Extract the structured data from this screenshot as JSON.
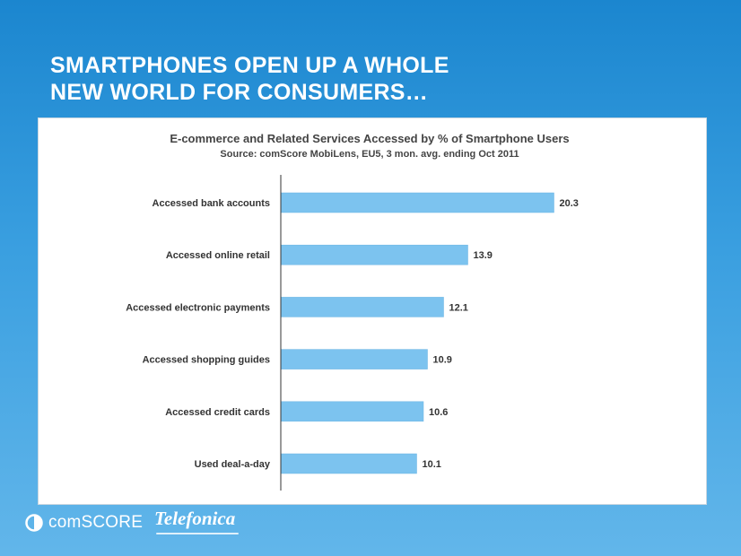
{
  "slide": {
    "title_line1": "SMARTPHONES OPEN UP A WHOLE",
    "title_line2": "NEW WORLD FOR CONSUMERS…"
  },
  "chart_data": {
    "type": "bar",
    "orientation": "horizontal",
    "title": "E-commerce and Related Services Accessed by % of Smartphone Users",
    "subtitle": "Source: comScore MobiLens, EU5, 3 mon. avg. ending Oct 2011",
    "categories": [
      "Accessed bank accounts",
      "Accessed online retail",
      "Accessed electronic payments",
      "Accessed shopping guides",
      "Accessed credit cards",
      "Used deal-a-day"
    ],
    "values": [
      20.3,
      13.9,
      12.1,
      10.9,
      10.6,
      10.1
    ],
    "xlim": [
      0,
      28
    ],
    "bar_color": "#7cc3ef",
    "grid": false,
    "data_labels": true
  },
  "footer": {
    "logo_left": "comScore",
    "logo_left_display": "comSCORE",
    "logo_right": "Telefonica"
  }
}
